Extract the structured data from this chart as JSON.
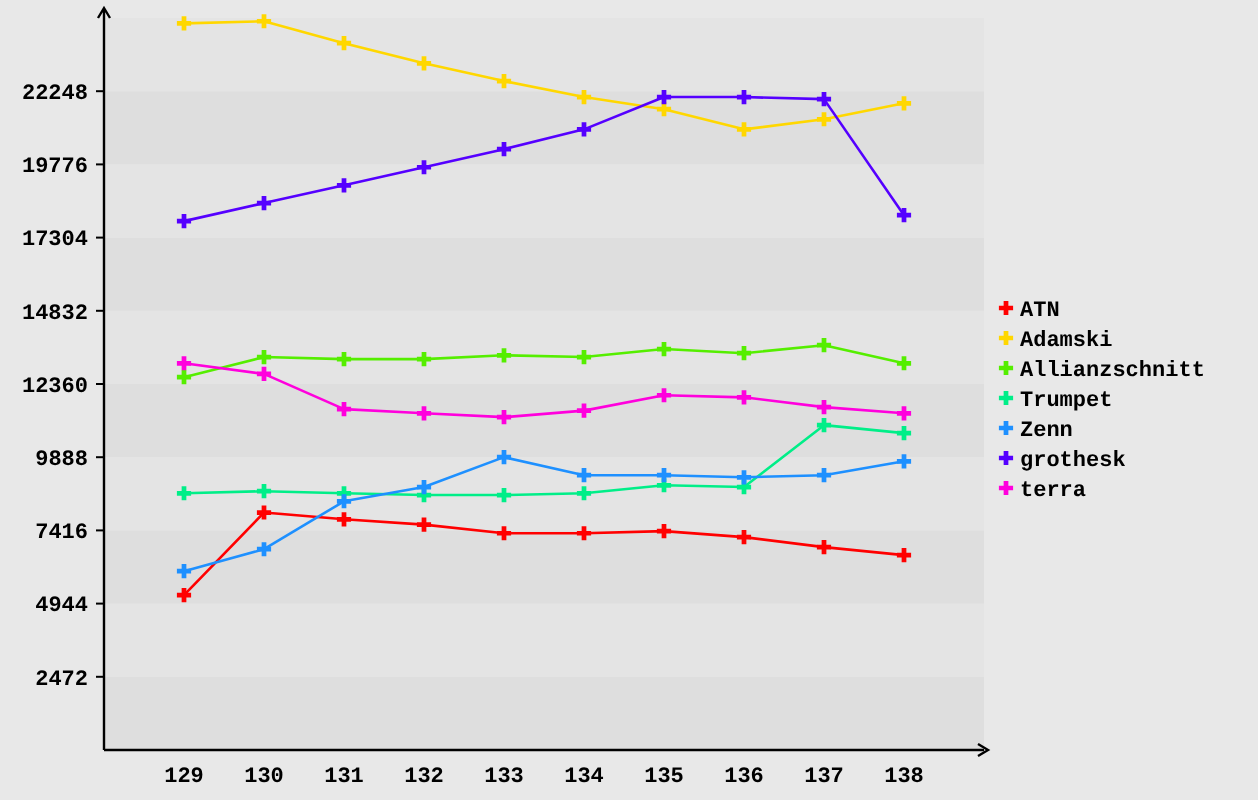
{
  "chart_data": {
    "type": "line",
    "categories": [
      "129",
      "130",
      "131",
      "132",
      "133",
      "134",
      "135",
      "136",
      "137",
      "138"
    ],
    "ylim": [
      0,
      24720
    ],
    "yticks": [
      2472,
      4944,
      7416,
      9888,
      12360,
      14832,
      17304,
      19776,
      22248
    ],
    "legend": "right",
    "marker": "cross",
    "line_style": "solid",
    "series": [
      {
        "name": "ATN",
        "color": "#ff0000",
        "values": [
          5230,
          8020,
          7790,
          7610,
          7320,
          7320,
          7390,
          7190,
          6850,
          6580
        ]
      },
      {
        "name": "Adamski",
        "color": "#ffd700",
        "values": [
          24540,
          24610,
          23870,
          23190,
          22590,
          22050,
          21640,
          20960,
          21300,
          21840
        ]
      },
      {
        "name": "Allianzschnitt",
        "color": "#55ee00",
        "values": [
          12590,
          13270,
          13200,
          13200,
          13330,
          13270,
          13540,
          13400,
          13670,
          13060
        ]
      },
      {
        "name": "Trumpet",
        "color": "#00ee88",
        "values": [
          8670,
          8740,
          8670,
          8610,
          8610,
          8670,
          8940,
          8880,
          10970,
          10700
        ]
      },
      {
        "name": "Zenn",
        "color": "#1e90ff",
        "values": [
          6040,
          6780,
          8400,
          8880,
          9890,
          9280,
          9280,
          9210,
          9280,
          9750
        ]
      },
      {
        "name": "grothesk",
        "color": "#5500ff",
        "values": [
          17860,
          18470,
          19070,
          19680,
          20290,
          20960,
          22050,
          22050,
          21980,
          18060
        ]
      },
      {
        "name": "terra",
        "color": "#ff00dd",
        "values": [
          13060,
          12700,
          11510,
          11370,
          11240,
          11460,
          11980,
          11910,
          11580,
          11370
        ]
      }
    ]
  }
}
